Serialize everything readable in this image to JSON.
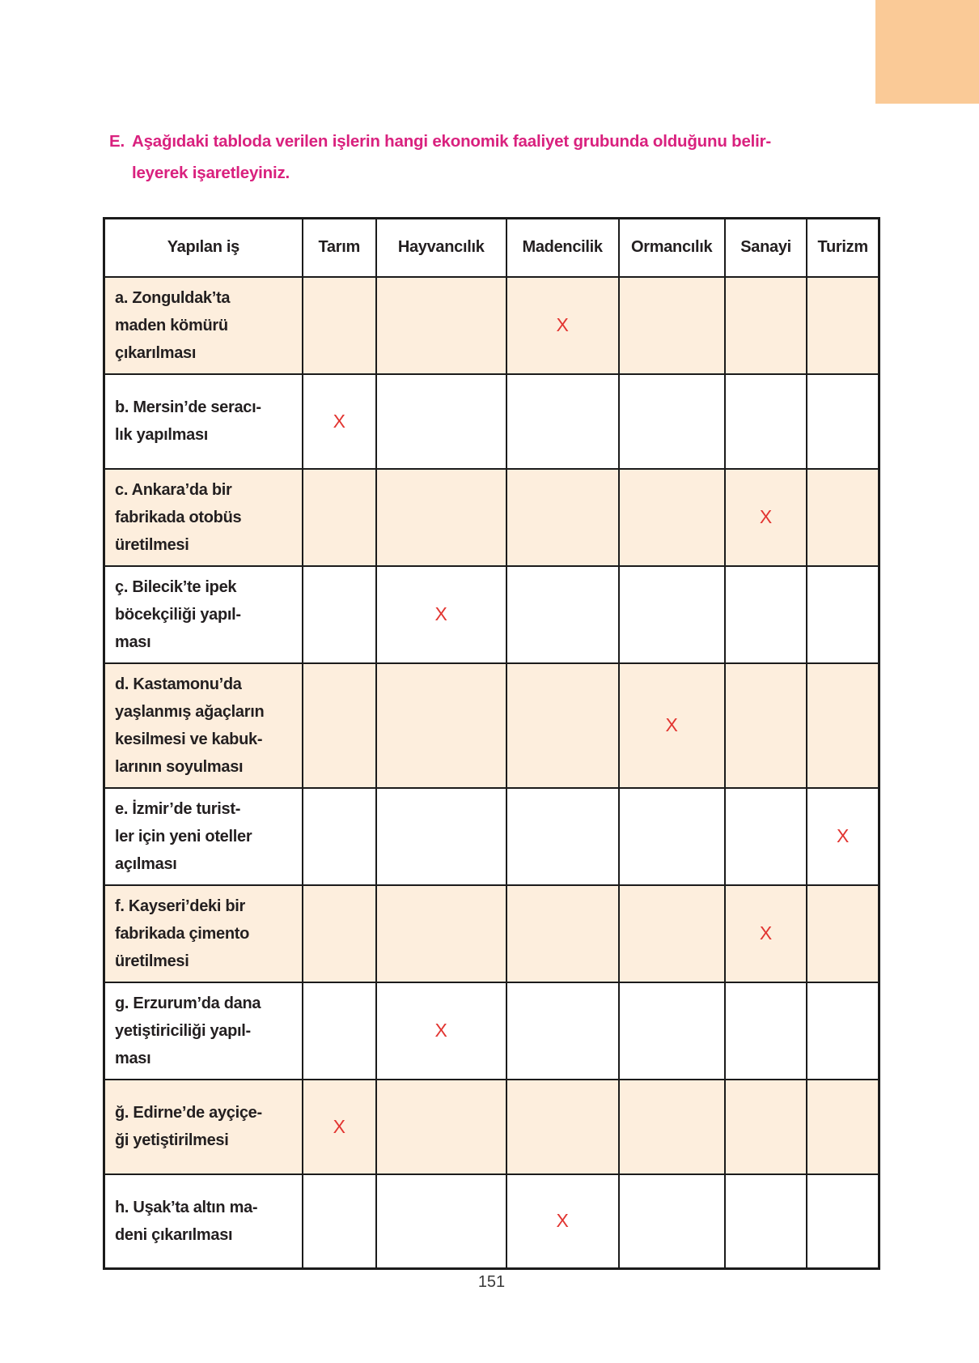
{
  "page": {
    "number": "151"
  },
  "decoration": {
    "corner_block_color": "#FACA97"
  },
  "heading": {
    "label": "E.",
    "text": "Aşağıdaki tabloda verilen işlerin hangi ekonomik faaliyet grubunda olduğunu belir-\nleyerek işaretleyiniz.",
    "color": "#D9217E"
  },
  "table": {
    "columns": [
      "Yapılan iş",
      "Tarım",
      "Hayvancılık",
      "Madencilik",
      "Ormancılık",
      "Sanayi",
      "Turizm"
    ],
    "mark_symbol": "X",
    "mark_color": "#E23531",
    "shaded_row_color": "#FDEEDD",
    "rows": [
      {
        "task": "a. Zonguldak’ta\nmaden kömürü\nçıkarılması",
        "marked_column": "Madencilik",
        "shaded": true
      },
      {
        "task": "b. Mersin’de seracı-\nlık yapılması",
        "marked_column": "Tarım",
        "shaded": false
      },
      {
        "task": "c. Ankara’da bir\nfabrikada otobüs\nüretilmesi",
        "marked_column": "Sanayi",
        "shaded": true
      },
      {
        "task": "ç. Bilecik’te ipek\nböcekçiliği yapıl-\nması",
        "marked_column": "Hayvancılık",
        "shaded": false
      },
      {
        "task": "d. Kastamonu’da\nyaşlanmış ağaçların\nkesilmesi ve kabuk-\nlarının soyulması",
        "marked_column": "Ormancılık",
        "shaded": true
      },
      {
        "task": "e. İzmir’de turist-\nler için yeni oteller\naçılması",
        "marked_column": "Turizm",
        "shaded": false
      },
      {
        "task": "f. Kayseri’deki bir\nfabrikada çimento\nüretilmesi",
        "marked_column": "Sanayi",
        "shaded": true
      },
      {
        "task": "g. Erzurum’da dana\nyetiştiriciliği yapıl-\nması",
        "marked_column": "Hayvancılık",
        "shaded": false
      },
      {
        "task": "ğ. Edirne’de ayçiçe-\nği yetiştirilmesi",
        "marked_column": "Tarım",
        "shaded": true
      },
      {
        "task": "h. Uşak’ta altın ma-\ndeni çıkarılması",
        "marked_column": "Madencilik",
        "shaded": false
      }
    ]
  }
}
